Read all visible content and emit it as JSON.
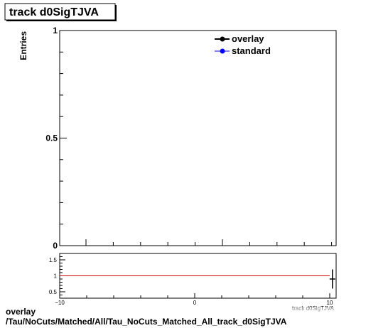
{
  "chart_data": [
    {
      "type": "line",
      "title": "track d0SigTJVA",
      "xlabel": "",
      "ylabel": "Entries",
      "ylim": [
        0,
        1
      ],
      "yticks": [
        "0",
        "0.5",
        "1"
      ],
      "legend_position": "top-right",
      "series": [
        {
          "name": "overlay",
          "color": "#000000",
          "marker": "circle",
          "x": [],
          "y": []
        },
        {
          "name": "standard",
          "color": "#0000ff",
          "marker": "circle",
          "x": [],
          "y": []
        }
      ]
    },
    {
      "type": "line",
      "title": "",
      "xlabel": "track d0SigTJVA",
      "ylabel": "",
      "xlim": [
        -10,
        10
      ],
      "ylim": [
        0.3,
        1.7
      ],
      "xticks": [
        "−10",
        "0",
        "10"
      ],
      "yticks": [
        "0.5",
        "1",
        "1.5"
      ],
      "reference_line": {
        "y": 1,
        "color": "#cc0000"
      },
      "series": [
        {
          "name": "ratio",
          "color": "#000000",
          "x": [
            10.2
          ],
          "y": [
            0.9
          ],
          "yerr": [
            0.3
          ]
        }
      ]
    }
  ],
  "footer": {
    "line1": "overlay",
    "line2": "/Tau/NoCuts/Matched/All/Tau_NoCuts_Matched_All_track_d0SigTJVA"
  }
}
